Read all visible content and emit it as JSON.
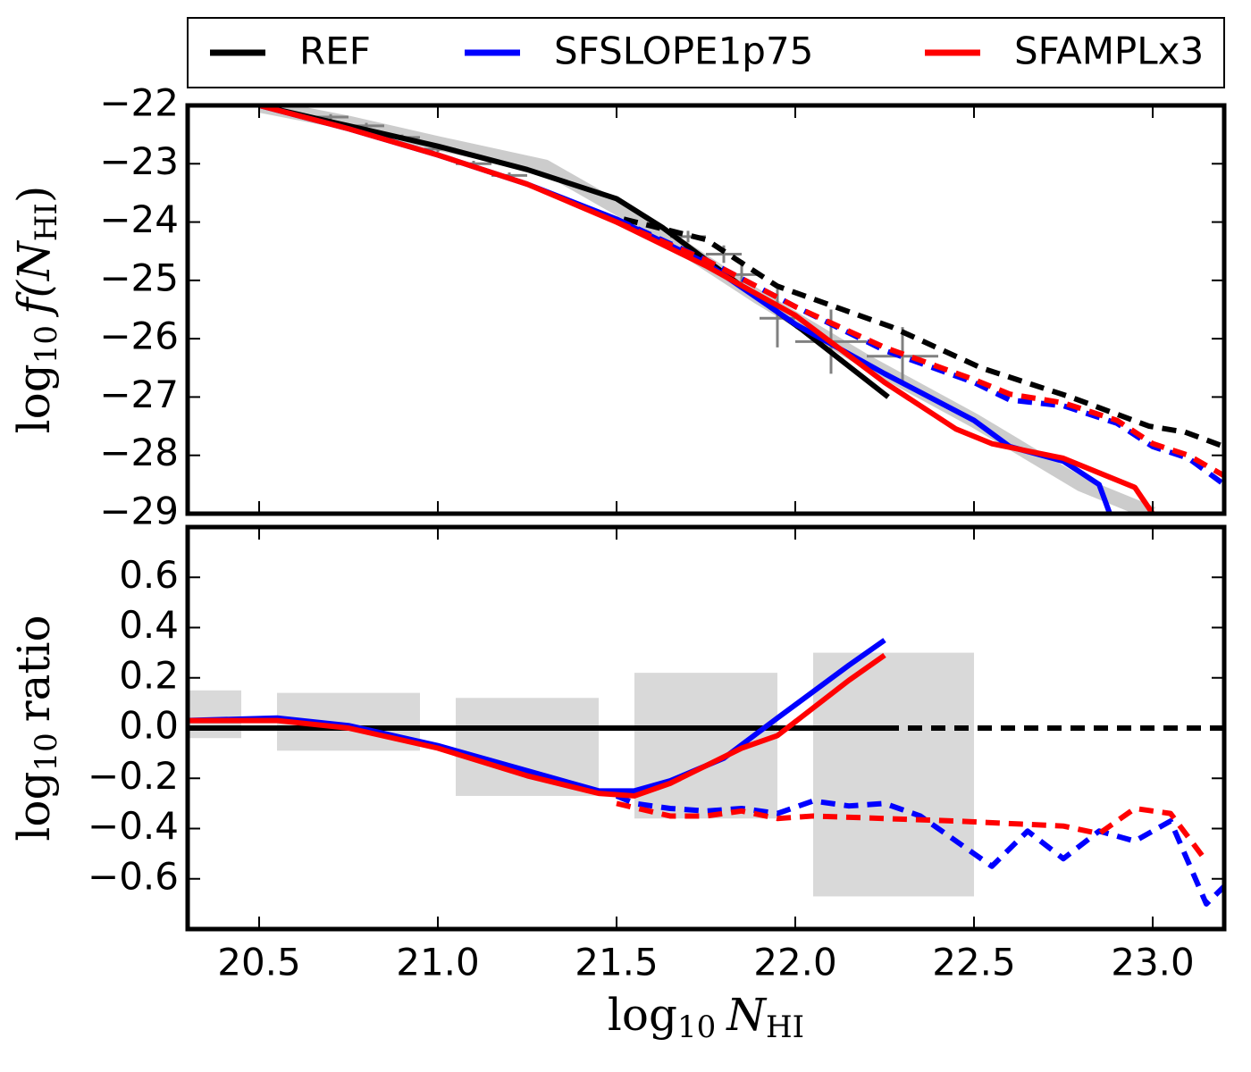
{
  "chart_data": [
    {
      "type": "line",
      "legend": "top",
      "xlim": [
        20.3,
        23.2
      ],
      "xticks": [
        20.5,
        {
          "value": 21,
          "label": "21.0"
        },
        21.5,
        {
          "value": 22,
          "label": "22.0"
        },
        22.5,
        {
          "value": 23,
          "label": "23.0"
        }
      ],
      "show_xticklabels": false,
      "ylim": [
        -29,
        -22
      ],
      "yticks": [
        {
          "value": -22,
          "label": "−22"
        },
        {
          "value": -23,
          "label": "−23"
        },
        {
          "value": -24,
          "label": "−24"
        },
        {
          "value": -25,
          "label": "−25"
        },
        {
          "value": -26,
          "label": "−26"
        },
        {
          "value": -27,
          "label": "−27"
        },
        {
          "value": -28,
          "label": "−28"
        },
        {
          "value": -29,
          "label": "−29"
        }
      ],
      "y_label": [
        "log",
        "10",
        "f(",
        "N",
        "HI",
        ")"
      ],
      "band": {
        "color": "#cccccc",
        "x": [
          20.5,
          20.75,
          21.0,
          21.3,
          21.6,
          21.9,
          22.2,
          22.5,
          22.8,
          23.0
        ],
        "values": [
          -22.0,
          -22.3,
          -22.65,
          -23.05,
          -24.1,
          -25.3,
          -26.4,
          -27.4,
          -28.5,
          -29.0
        ]
      },
      "points": {
        "color": "#808080",
        "x": [
          20.7,
          20.8,
          20.9,
          21.0,
          21.1,
          21.2,
          21.7,
          21.8,
          21.85,
          21.95,
          22.1,
          22.3
        ],
        "values": [
          -22.2,
          -22.35,
          -22.55,
          -22.75,
          -23.0,
          -23.2,
          -24.25,
          -24.55,
          -24.9,
          -25.65,
          -26.05,
          -26.3
        ],
        "xerr": [
          0.05,
          0.05,
          0.05,
          0.05,
          0.05,
          0.05,
          0.05,
          0.05,
          0.05,
          0.05,
          0.1,
          0.1
        ],
        "yerr": [
          0.05,
          0.05,
          0.05,
          0.05,
          0.05,
          0.05,
          0.1,
          0.15,
          0.25,
          0.5,
          0.55,
          0.5
        ]
      },
      "series": [
        {
          "name": "REF",
          "color": "#000000",
          "solid": {
            "x": [
              20.5,
              20.75,
              21.0,
              21.25,
              21.5,
              21.63,
              21.85,
              22.02,
              22.26
            ],
            "values": [
              -22.0,
              -22.35,
              -22.7,
              -23.1,
              -23.6,
              -24.1,
              -25.1,
              -25.85,
              -27.0
            ]
          },
          "dashed": {
            "x": [
              21.52,
              21.75,
              21.95,
              22.27,
              22.52,
              22.77,
              22.99,
              23.09,
              23.2
            ],
            "values": [
              -23.95,
              -24.3,
              -25.1,
              -25.8,
              -26.5,
              -27.0,
              -27.5,
              -27.6,
              -27.85
            ]
          }
        },
        {
          "name": "SFSLOPE1p75",
          "color": "#0000ff",
          "solid": {
            "x": [
              20.5,
              20.75,
              21.0,
              21.25,
              21.5,
              21.75,
              22.0,
              22.25,
              22.5,
              22.6,
              22.75,
              22.85,
              22.88
            ],
            "values": [
              -22.0,
              -22.4,
              -22.85,
              -23.35,
              -23.95,
              -24.7,
              -25.75,
              -26.6,
              -27.4,
              -27.85,
              -28.1,
              -28.5,
              -29.0
            ]
          },
          "dashed": {
            "x": [
              21.5,
              21.75,
              22.0,
              22.25,
              22.5,
              22.6,
              22.75,
              22.9,
              23.0,
              23.1,
              23.2
            ],
            "values": [
              -23.95,
              -24.65,
              -25.45,
              -26.2,
              -26.75,
              -27.05,
              -27.15,
              -27.45,
              -27.85,
              -28.05,
              -28.5
            ]
          }
        },
        {
          "name": "SFAMPLx3",
          "color": "#ff0000",
          "solid": {
            "x": [
              20.5,
              20.75,
              21.0,
              21.25,
              21.5,
              21.75,
              22.0,
              22.25,
              22.45,
              22.55,
              22.75,
              22.85,
              22.95,
              23.0
            ],
            "values": [
              -22.0,
              -22.4,
              -22.85,
              -23.35,
              -24.0,
              -24.75,
              -25.6,
              -26.75,
              -27.55,
              -27.8,
              -28.05,
              -28.3,
              -28.55,
              -29.0
            ]
          },
          "dashed": {
            "x": [
              21.5,
              21.75,
              22.0,
              22.25,
              22.5,
              22.6,
              22.75,
              22.9,
              23.0,
              23.1,
              23.2
            ],
            "values": [
              -24.0,
              -24.65,
              -25.45,
              -26.15,
              -26.7,
              -26.95,
              -27.1,
              -27.4,
              -27.8,
              -28.0,
              -28.35
            ]
          }
        }
      ]
    },
    {
      "type": "line",
      "xlim": [
        20.3,
        23.2
      ],
      "xticks": [
        20.5,
        {
          "value": 21,
          "label": "21.0"
        },
        21.5,
        {
          "value": 22,
          "label": "22.0"
        },
        22.5,
        {
          "value": 23,
          "label": "23.0"
        }
      ],
      "show_xticklabels": true,
      "ylim": [
        -0.8,
        0.8
      ],
      "yticks": [
        {
          "value": -0.6,
          "label": "−0.6"
        },
        {
          "value": -0.4,
          "label": "−0.4"
        },
        {
          "value": -0.2,
          "label": "−0.2"
        },
        {
          "value": 0,
          "label": "0.0"
        },
        0.2,
        0.4,
        0.6
      ],
      "y_label": [
        "log",
        "10",
        "ratio"
      ],
      "x_label": [
        "log",
        "10",
        "N",
        "HI"
      ],
      "boxes": [
        {
          "x0": 20.3,
          "x1": 20.45,
          "y0": -0.04,
          "y1": 0.15
        },
        {
          "x0": 20.55,
          "x1": 20.95,
          "y0": -0.09,
          "y1": 0.14
        },
        {
          "x0": 21.05,
          "x1": 21.45,
          "y0": -0.27,
          "y1": 0.12
        },
        {
          "x0": 21.55,
          "x1": 21.95,
          "y0": -0.36,
          "y1": 0.22
        },
        {
          "x0": 22.05,
          "x1": 22.5,
          "y0": -0.67,
          "y1": 0.3
        }
      ],
      "box_color": "#d9d9d9",
      "series": [
        {
          "color": "#000000",
          "solid": {
            "x": [
              20.3,
              22.25
            ],
            "values": [
              0,
              0
            ]
          },
          "dashed": {
            "x": [
              22.25,
              23.2
            ],
            "values": [
              0,
              0
            ]
          }
        },
        {
          "color": "#0000ff",
          "solid": {
            "x": [
              20.3,
              20.55,
              20.75,
              21.0,
              21.25,
              21.45,
              21.55,
              21.65,
              21.8,
              21.95,
              22.15,
              22.25
            ],
            "values": [
              0.03,
              0.04,
              0.01,
              -0.07,
              -0.17,
              -0.25,
              -0.25,
              -0.21,
              -0.12,
              0.04,
              0.25,
              0.35
            ]
          },
          "dashed": {
            "x": [
              21.5,
              21.55,
              21.65,
              21.75,
              21.85,
              21.95,
              22.05,
              22.15,
              22.25,
              22.35,
              22.45,
              22.55,
              22.65,
              22.75,
              22.85,
              22.95,
              23.05,
              23.15,
              23.2
            ],
            "values": [
              -0.27,
              -0.3,
              -0.32,
              -0.33,
              -0.32,
              -0.34,
              -0.29,
              -0.31,
              -0.3,
              -0.35,
              -0.45,
              -0.55,
              -0.41,
              -0.52,
              -0.41,
              -0.45,
              -0.37,
              -0.7,
              -0.63
            ]
          }
        },
        {
          "color": "#ff0000",
          "solid": {
            "x": [
              20.3,
              20.55,
              20.75,
              21.0,
              21.25,
              21.45,
              21.55,
              21.65,
              21.85,
              21.95,
              22.15,
              22.25
            ],
            "values": [
              0.03,
              0.03,
              0.0,
              -0.08,
              -0.19,
              -0.26,
              -0.27,
              -0.22,
              -0.08,
              -0.03,
              0.19,
              0.29
            ]
          },
          "dashed": {
            "x": [
              21.5,
              21.65,
              21.75,
              21.85,
              21.95,
              22.05,
              22.25,
              22.45,
              22.75,
              22.85,
              22.95,
              23.05,
              23.15
            ],
            "values": [
              -0.3,
              -0.35,
              -0.35,
              -0.33,
              -0.36,
              -0.35,
              -0.36,
              -0.37,
              -0.39,
              -0.42,
              -0.32,
              -0.34,
              -0.53
            ]
          }
        }
      ]
    }
  ]
}
